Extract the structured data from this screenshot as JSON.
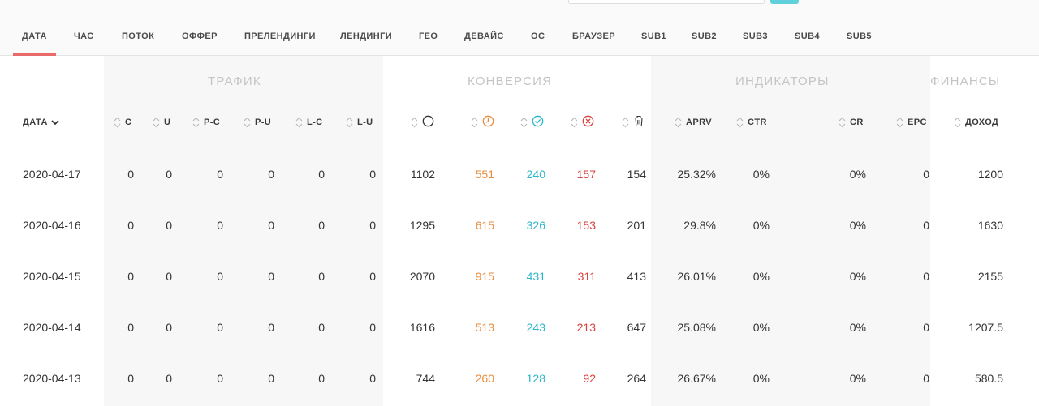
{
  "tabs": [
    "ДАТА",
    "ЧАС",
    "ПОТОК",
    "ОФФЕР",
    "ПРЕЛЕНДИНГИ",
    "ЛЕНДИНГИ",
    "ГЕО",
    "ДЕВАЙС",
    "ОС",
    "БРАУЗЕР",
    "SUB1",
    "SUB2",
    "SUB3",
    "SUB4",
    "SUB5"
  ],
  "active_tab": "ДАТА",
  "groups": {
    "traffic": "ТРАФИК",
    "conversion": "КОНВЕРСИЯ",
    "indicators": "ИНДИКАТОРЫ",
    "finance": "ФИНАНСЫ"
  },
  "columns": {
    "date": "ДАТА",
    "c": "C",
    "u": "U",
    "pc": "P-C",
    "pu": "P-U",
    "lc": "L-C",
    "lu": "L-U",
    "total_icon": "circle-icon",
    "pending_icon": "clock-icon",
    "approved_icon": "check-circle-icon",
    "rejected_icon": "x-circle-icon",
    "trash_icon": "trash-icon",
    "aprv": "APRV",
    "ctr": "CTR",
    "cr": "CR",
    "epc": "EPC",
    "income": "ДОХОД"
  },
  "colors": {
    "accent": "#e86a6a",
    "pending": "#e98d3e",
    "approved": "#2bb7c9",
    "rejected": "#d9423e"
  },
  "rows": [
    {
      "date": "2020-04-17",
      "c": "0",
      "u": "0",
      "pc": "0",
      "pu": "0",
      "lc": "0",
      "lu": "0",
      "total": "1102",
      "pending": "551",
      "approved": "240",
      "rejected": "157",
      "trash": "154",
      "aprv": "25.32%",
      "ctr": "0%",
      "cr": "0%",
      "epc": "0",
      "income": "1200"
    },
    {
      "date": "2020-04-16",
      "c": "0",
      "u": "0",
      "pc": "0",
      "pu": "0",
      "lc": "0",
      "lu": "0",
      "total": "1295",
      "pending": "615",
      "approved": "326",
      "rejected": "153",
      "trash": "201",
      "aprv": "29.8%",
      "ctr": "0%",
      "cr": "0%",
      "epc": "0",
      "income": "1630"
    },
    {
      "date": "2020-04-15",
      "c": "0",
      "u": "0",
      "pc": "0",
      "pu": "0",
      "lc": "0",
      "lu": "0",
      "total": "2070",
      "pending": "915",
      "approved": "431",
      "rejected": "311",
      "trash": "413",
      "aprv": "26.01%",
      "ctr": "0%",
      "cr": "0%",
      "epc": "0",
      "income": "2155"
    },
    {
      "date": "2020-04-14",
      "c": "0",
      "u": "0",
      "pc": "0",
      "pu": "0",
      "lc": "0",
      "lu": "0",
      "total": "1616",
      "pending": "513",
      "approved": "243",
      "rejected": "213",
      "trash": "647",
      "aprv": "25.08%",
      "ctr": "0%",
      "cr": "0%",
      "epc": "0",
      "income": "1207.5"
    },
    {
      "date": "2020-04-13",
      "c": "0",
      "u": "0",
      "pc": "0",
      "pu": "0",
      "lc": "0",
      "lu": "0",
      "total": "744",
      "pending": "260",
      "approved": "128",
      "rejected": "92",
      "trash": "264",
      "aprv": "26.67%",
      "ctr": "0%",
      "cr": "0%",
      "epc": "0",
      "income": "580.5"
    }
  ]
}
